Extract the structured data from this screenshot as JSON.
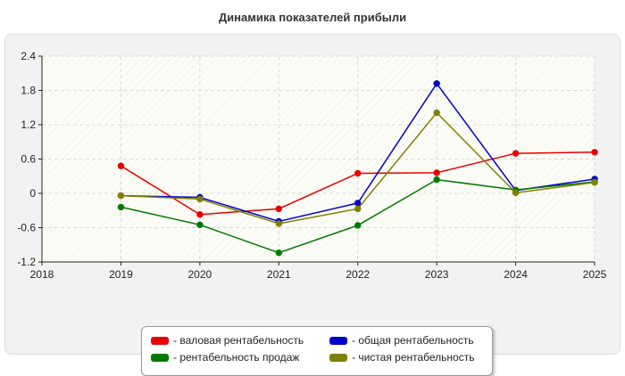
{
  "chart_data": {
    "type": "line",
    "title": "Динамика показателей прибыли",
    "xlabel": "",
    "ylabel": "",
    "x": [
      2018,
      2019,
      2020,
      2021,
      2022,
      2023,
      2024,
      2025
    ],
    "xlim": [
      2018,
      2025
    ],
    "ylim": [
      -1.2,
      2.4
    ],
    "y_ticks": [
      "-1.2",
      "-0.6",
      "0",
      "0.6",
      "1.2",
      "1.8",
      "2.4"
    ],
    "x_ticks": [
      "2018",
      "2019",
      "2020",
      "2021",
      "2022",
      "2023",
      "2024",
      "2025"
    ],
    "grid": true,
    "legend_position": "bottom",
    "series": [
      {
        "name": "- валовая рентабельность",
        "color": "#e60000",
        "values": [
          null,
          0.48,
          -0.37,
          -0.27,
          0.35,
          0.36,
          0.7,
          0.72
        ]
      },
      {
        "name": "- общая рентабельность",
        "color": "#0000cc",
        "values": [
          null,
          -0.04,
          -0.07,
          -0.49,
          -0.17,
          1.92,
          0.05,
          0.25
        ]
      },
      {
        "name": "- рентабельность продаж",
        "color": "#007a00",
        "values": [
          null,
          -0.24,
          -0.55,
          -1.04,
          -0.56,
          0.24,
          0.06,
          0.2
        ]
      },
      {
        "name": "- чистая рентабельность",
        "color": "#808000",
        "values": [
          null,
          -0.04,
          -0.1,
          -0.53,
          -0.27,
          1.41,
          0.01,
          0.19
        ]
      }
    ]
  }
}
